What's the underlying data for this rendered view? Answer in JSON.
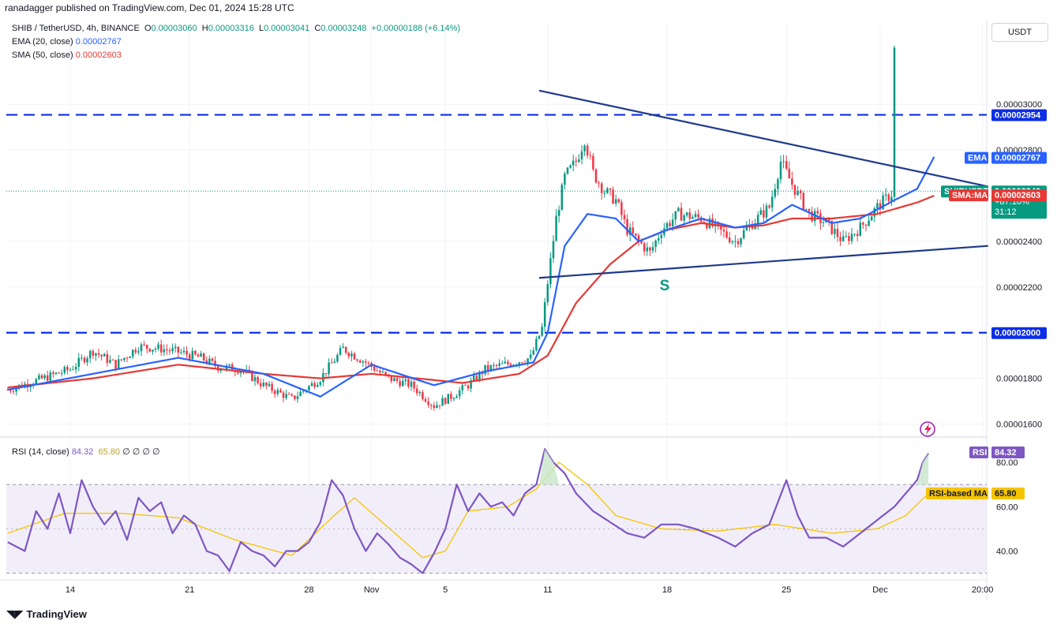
{
  "header": {
    "published": "ranadagger published on TradingView.com, Dec 01, 2024 15:28 UTC"
  },
  "legend": {
    "symbol": "SHIB / TetherUSD, 4h, BINANCE",
    "o_label": "O",
    "o_value": "0.00003060",
    "h_label": "H",
    "h_value": "0.00003316",
    "l_label": "L",
    "l_value": "0.00003041",
    "c_label": "C",
    "c_value": "0.00003248",
    "change": "+0.00000188 (+6.14%)",
    "ema_label": "EMA (20, close)",
    "ema_value": "0.00002767",
    "sma_label": "SMA (50, close)",
    "sma_value": "0.00002603",
    "rsi_label": "RSI (14, close)",
    "rsi_value": "84.32",
    "rsi_ma_value": "65.80",
    "rsi_rest": "∅ ∅ ∅ ∅"
  },
  "currency": "USDT",
  "badges": {
    "symbol_tag": "SHIBUSDT",
    "price": "0.00003248",
    "pct": "+87.10%",
    "countdown": "31:12",
    "ema_tag": "EMA",
    "ema_price": "0.00002767",
    "sma_tag": "SMA:MA",
    "sma_price": "0.00002603",
    "level_upper": "0.00002954",
    "level_lower": "0.00002000",
    "rsi_tag": "RSI",
    "rsi_value": "84.32",
    "rsi_ma_tag": "RSI-based MA",
    "rsi_ma_value": "65.80"
  },
  "annotation": "S",
  "footer": {
    "brand": "TradingView"
  },
  "colors": {
    "up": "#089981",
    "down": "#f23645",
    "ema": "#2962ff",
    "sma": "#e53935",
    "rsi": "#7e57c2",
    "rsi_ma": "#f5c400",
    "trend": "#1e3a8a",
    "level": "#0d2ee6"
  },
  "chart_data": {
    "type": "candlestick",
    "price_axis": {
      "min": 1.55e-05,
      "max": 3.36e-05,
      "ticks": [
        "0.00003000",
        "0.00002800",
        "0.00002400",
        "0.00002200",
        "0.00001800",
        "0.00001600"
      ],
      "tick_values": [
        3e-05,
        2.8e-05,
        2.4e-05,
        2.2e-05,
        1.8e-05,
        1.6e-05
      ]
    },
    "x_axis": {
      "labels": [
        "14",
        "21",
        "28",
        "Nov",
        "5",
        "11",
        "18",
        "25",
        "Dec",
        "20:00"
      ],
      "label_bar_index": [
        22,
        64,
        106,
        128,
        154,
        190,
        232,
        274,
        307,
        343
      ]
    },
    "bars_total": 313,
    "bars_visible_span": 345,
    "horizontal_levels": [
      2.954e-05,
      2e-05
    ],
    "trendlines": [
      {
        "name": "upper",
        "x1": 187,
        "y1": 3.06e-05,
        "x2": 345,
        "y2": 2.64e-05
      },
      {
        "name": "lower",
        "x1": 187,
        "y1": 2.24e-05,
        "x2": 345,
        "y2": 2.38e-05
      }
    ],
    "anchors": {
      "close": [
        [
          0,
          1.75e-05
        ],
        [
          10,
          1.79e-05
        ],
        [
          22,
          1.84e-05
        ],
        [
          30,
          1.92e-05
        ],
        [
          38,
          1.86e-05
        ],
        [
          46,
          1.94e-05
        ],
        [
          54,
          1.93e-05
        ],
        [
          62,
          1.91e-05
        ],
        [
          68,
          1.89e-05
        ],
        [
          74,
          1.85e-05
        ],
        [
          82,
          1.84e-05
        ],
        [
          90,
          1.77e-05
        ],
        [
          100,
          1.71e-05
        ],
        [
          110,
          1.8e-05
        ],
        [
          118,
          1.93e-05
        ],
        [
          126,
          1.87e-05
        ],
        [
          134,
          1.8e-05
        ],
        [
          142,
          1.77e-05
        ],
        [
          150,
          1.68e-05
        ],
        [
          156,
          1.72e-05
        ],
        [
          162,
          1.77e-05
        ],
        [
          168,
          1.84e-05
        ],
        [
          178,
          1.87e-05
        ],
        [
          184,
          1.89e-05
        ],
        [
          188,
          2.02e-05
        ],
        [
          190,
          2.22e-05
        ],
        [
          193,
          2.5e-05
        ],
        [
          196,
          2.68e-05
        ],
        [
          200,
          2.75e-05
        ],
        [
          203,
          2.85e-05
        ],
        [
          206,
          2.7e-05
        ],
        [
          210,
          2.62e-05
        ],
        [
          214,
          2.58e-05
        ],
        [
          218,
          2.45e-05
        ],
        [
          222,
          2.4e-05
        ],
        [
          226,
          2.35e-05
        ],
        [
          230,
          2.45e-05
        ],
        [
          236,
          2.52e-05
        ],
        [
          244,
          2.5e-05
        ],
        [
          250,
          2.45e-05
        ],
        [
          256,
          2.4e-05
        ],
        [
          262,
          2.48e-05
        ],
        [
          268,
          2.55e-05
        ],
        [
          272,
          2.75e-05
        ],
        [
          276,
          2.65e-05
        ],
        [
          282,
          2.52e-05
        ],
        [
          288,
          2.48e-05
        ],
        [
          294,
          2.4e-05
        ],
        [
          300,
          2.46e-05
        ],
        [
          306,
          2.55e-05
        ],
        [
          312,
          2.62e-05
        ],
        [
          316,
          2.7e-05
        ],
        [
          320,
          2.75e-05
        ],
        [
          322,
          2.96e-05
        ],
        [
          324,
          3.08e-05
        ],
        [
          326,
          3.25e-05
        ]
      ],
      "ema": [
        [
          0,
          1.75e-05
        ],
        [
          30,
          1.82e-05
        ],
        [
          60,
          1.89e-05
        ],
        [
          90,
          1.82e-05
        ],
        [
          110,
          1.72e-05
        ],
        [
          128,
          1.86e-05
        ],
        [
          150,
          1.77e-05
        ],
        [
          168,
          1.83e-05
        ],
        [
          185,
          1.87e-05
        ],
        [
          190,
          2e-05
        ],
        [
          196,
          2.38e-05
        ],
        [
          204,
          2.52e-05
        ],
        [
          214,
          2.5e-05
        ],
        [
          222,
          2.4e-05
        ],
        [
          232,
          2.45e-05
        ],
        [
          244,
          2.5e-05
        ],
        [
          256,
          2.46e-05
        ],
        [
          266,
          2.48e-05
        ],
        [
          276,
          2.56e-05
        ],
        [
          290,
          2.48e-05
        ],
        [
          300,
          2.5e-05
        ],
        [
          312,
          2.58e-05
        ],
        [
          320,
          2.63e-05
        ],
        [
          326,
          2.77e-05
        ]
      ],
      "sma": [
        [
          0,
          1.76e-05
        ],
        [
          30,
          1.8e-05
        ],
        [
          60,
          1.86e-05
        ],
        [
          90,
          1.82e-05
        ],
        [
          110,
          1.8e-05
        ],
        [
          128,
          1.82e-05
        ],
        [
          160,
          1.78e-05
        ],
        [
          180,
          1.82e-05
        ],
        [
          190,
          1.9e-05
        ],
        [
          200,
          2.13e-05
        ],
        [
          212,
          2.3e-05
        ],
        [
          222,
          2.4e-05
        ],
        [
          232,
          2.45e-05
        ],
        [
          244,
          2.48e-05
        ],
        [
          256,
          2.46e-05
        ],
        [
          266,
          2.47e-05
        ],
        [
          276,
          2.5e-05
        ],
        [
          290,
          2.5e-05
        ],
        [
          306,
          2.52e-05
        ],
        [
          320,
          2.57e-05
        ],
        [
          326,
          2.6e-05
        ]
      ]
    },
    "rsi_axis": {
      "min": 27,
      "max": 90,
      "ticks": [
        "80.00",
        "60.00",
        "40.00"
      ],
      "tick_values": [
        80,
        60,
        40
      ],
      "band": [
        30,
        70
      ],
      "mid": 50
    },
    "rsi": [
      [
        0,
        44
      ],
      [
        6,
        40
      ],
      [
        10,
        58
      ],
      [
        14,
        50
      ],
      [
        18,
        66
      ],
      [
        22,
        48
      ],
      [
        26,
        72
      ],
      [
        30,
        60
      ],
      [
        34,
        52
      ],
      [
        38,
        58
      ],
      [
        42,
        45
      ],
      [
        46,
        64
      ],
      [
        50,
        58
      ],
      [
        54,
        62
      ],
      [
        58,
        48
      ],
      [
        62,
        56
      ],
      [
        66,
        52
      ],
      [
        70,
        40
      ],
      [
        74,
        38
      ],
      [
        78,
        31
      ],
      [
        82,
        44
      ],
      [
        86,
        40
      ],
      [
        90,
        38
      ],
      [
        94,
        33
      ],
      [
        98,
        40
      ],
      [
        102,
        40
      ],
      [
        106,
        44
      ],
      [
        110,
        53
      ],
      [
        114,
        72
      ],
      [
        118,
        65
      ],
      [
        122,
        50
      ],
      [
        126,
        40
      ],
      [
        130,
        48
      ],
      [
        134,
        43
      ],
      [
        138,
        37
      ],
      [
        142,
        34
      ],
      [
        146,
        30
      ],
      [
        150,
        39
      ],
      [
        154,
        50
      ],
      [
        158,
        70
      ],
      [
        162,
        58
      ],
      [
        166,
        66
      ],
      [
        170,
        60
      ],
      [
        174,
        62
      ],
      [
        178,
        56
      ],
      [
        182,
        66
      ],
      [
        186,
        70
      ],
      [
        189,
        86
      ],
      [
        192,
        80
      ],
      [
        196,
        75
      ],
      [
        200,
        66
      ],
      [
        206,
        58
      ],
      [
        212,
        53
      ],
      [
        218,
        48
      ],
      [
        224,
        46
      ],
      [
        230,
        52
      ],
      [
        236,
        52
      ],
      [
        242,
        50
      ],
      [
        250,
        46
      ],
      [
        256,
        42
      ],
      [
        262,
        48
      ],
      [
        268,
        52
      ],
      [
        274,
        72
      ],
      [
        278,
        56
      ],
      [
        282,
        46
      ],
      [
        288,
        46
      ],
      [
        294,
        42
      ],
      [
        300,
        48
      ],
      [
        306,
        54
      ],
      [
        312,
        60
      ],
      [
        316,
        66
      ],
      [
        320,
        72
      ],
      [
        322,
        80
      ],
      [
        324,
        84
      ]
    ],
    "rsi_ma": [
      [
        0,
        48
      ],
      [
        20,
        57
      ],
      [
        40,
        57
      ],
      [
        60,
        55
      ],
      [
        80,
        45
      ],
      [
        100,
        38
      ],
      [
        114,
        55
      ],
      [
        122,
        64
      ],
      [
        130,
        55
      ],
      [
        146,
        37
      ],
      [
        154,
        40
      ],
      [
        162,
        58
      ],
      [
        176,
        60
      ],
      [
        186,
        68
      ],
      [
        194,
        80
      ],
      [
        204,
        70
      ],
      [
        214,
        56
      ],
      [
        230,
        50
      ],
      [
        250,
        49
      ],
      [
        270,
        52
      ],
      [
        290,
        48
      ],
      [
        306,
        50
      ],
      [
        316,
        56
      ],
      [
        324,
        66
      ]
    ]
  }
}
